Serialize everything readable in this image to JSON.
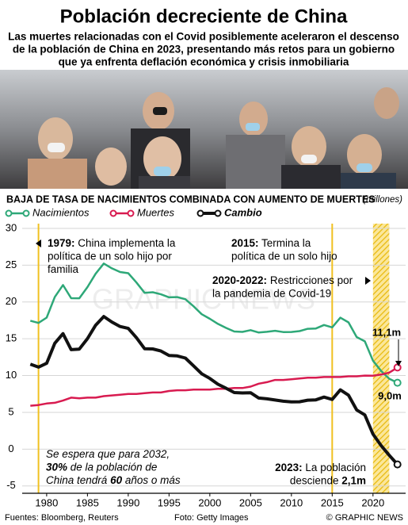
{
  "header": {
    "title": "Población decreciente de China",
    "subtitle": [
      "Las muertes relacionadas con el Covid posiblemente aceleraron el descenso",
      "de la población de China en 2023, presentando más retos para un gobierno",
      "que ya enfrenta deflación económica y crisis inmobiliaria"
    ]
  },
  "chart_data": {
    "type": "line",
    "title": "BAJA DE TASA DE NACIMIENTOS COMBINADA CON AUMENTO DE MUERTES",
    "unit_label": "(millones)",
    "x": [
      1978,
      1979,
      1980,
      1981,
      1982,
      1983,
      1984,
      1985,
      1986,
      1987,
      1988,
      1989,
      1990,
      1991,
      1992,
      1993,
      1994,
      1995,
      1996,
      1997,
      1998,
      1999,
      2000,
      2001,
      2002,
      2003,
      2004,
      2005,
      2006,
      2007,
      2008,
      2009,
      2010,
      2011,
      2012,
      2013,
      2014,
      2015,
      2016,
      2017,
      2018,
      2019,
      2020,
      2021,
      2022,
      2023
    ],
    "series": [
      {
        "name": "Nacimientos",
        "color": "#2ea878",
        "end_label": "9,0m",
        "values": [
          17.45,
          17.15,
          17.87,
          20.69,
          22.3,
          20.52,
          20.5,
          22.02,
          23.84,
          25.22,
          24.57,
          24.07,
          23.91,
          22.65,
          21.25,
          21.32,
          21.04,
          20.63,
          20.67,
          20.38,
          19.42,
          18.34,
          17.71,
          17.02,
          16.47,
          15.99,
          15.93,
          16.17,
          15.85,
          15.94,
          16.08,
          15.91,
          15.92,
          16.04,
          16.35,
          16.4,
          16.87,
          16.55,
          17.86,
          17.23,
          15.23,
          14.65,
          12.02,
          10.62,
          9.56,
          9.02
        ]
      },
      {
        "name": "Muertes",
        "color": "#d81b50",
        "end_label": "11,1m",
        "values": [
          5.9,
          6.0,
          6.2,
          6.3,
          6.6,
          7.0,
          6.9,
          7.0,
          7.0,
          7.2,
          7.3,
          7.4,
          7.5,
          7.5,
          7.6,
          7.7,
          7.7,
          7.9,
          8.0,
          8.0,
          8.1,
          8.1,
          8.1,
          8.2,
          8.2,
          8.3,
          8.3,
          8.5,
          8.9,
          9.1,
          9.4,
          9.4,
          9.5,
          9.6,
          9.7,
          9.7,
          9.8,
          9.8,
          9.8,
          9.9,
          9.9,
          10.0,
          9.98,
          10.14,
          10.41,
          11.1
        ]
      },
      {
        "name": "Cambio",
        "color": "#111111",
        "values": [
          11.55,
          11.15,
          11.67,
          14.39,
          15.7,
          13.52,
          13.6,
          15.02,
          16.84,
          18.02,
          17.27,
          16.67,
          16.41,
          15.15,
          13.65,
          13.62,
          13.34,
          12.73,
          12.67,
          12.38,
          11.32,
          10.24,
          9.61,
          8.82,
          8.27,
          7.69,
          7.63,
          7.67,
          6.95,
          6.84,
          6.68,
          6.51,
          6.42,
          6.44,
          6.65,
          6.7,
          7.07,
          6.75,
          8.06,
          7.33,
          5.33,
          4.65,
          2.04,
          0.48,
          -0.85,
          -2.08
        ]
      }
    ],
    "xlim": [
      1977,
      2024
    ],
    "xticks": [
      1980,
      1985,
      1990,
      1995,
      2000,
      2005,
      2010,
      2015,
      2020
    ],
    "ylim": [
      -6,
      30
    ],
    "yticks": [
      30,
      25,
      20,
      15,
      10,
      5,
      0,
      -5
    ],
    "grid": true,
    "highlight_years": [
      1979,
      2015
    ],
    "highlight_band": [
      2020,
      2022
    ],
    "annotations": [
      {
        "lines": [
          [
            "1979:",
            " China implementa la"
          ],
          [
            "política de un solo hijo por"
          ],
          [
            "familia"
          ]
        ],
        "bold": [
          [
            true,
            false
          ],
          [
            false
          ],
          [
            false
          ]
        ]
      },
      {
        "lines": [
          [
            "2015:",
            " Termina la"
          ],
          [
            "política de un solo hijo"
          ]
        ],
        "bold": [
          [
            true,
            false
          ],
          [
            false
          ]
        ]
      },
      {
        "lines": [
          [
            "2020-2022:",
            " Restricciones por"
          ],
          [
            "la pandemia de Covid-19"
          ]
        ],
        "bold": [
          [
            true,
            false
          ],
          [
            false
          ]
        ]
      },
      {
        "lines": [
          [
            "Se espera que para 2032,"
          ],
          [
            "30%",
            " de la población de"
          ],
          [
            "China tendrá ",
            "60",
            " años o más"
          ]
        ],
        "bold": [
          [
            false
          ],
          [
            true,
            false
          ],
          [
            false,
            true,
            false
          ]
        ]
      },
      {
        "lines": [
          [
            "2023:",
            " La población"
          ],
          [
            "desciende ",
            "2,1m"
          ]
        ],
        "bold": [
          [
            true,
            false
          ],
          [
            false,
            true
          ]
        ]
      }
    ]
  },
  "footer": {
    "sources": "Fuentes: Bloomberg, Reuters",
    "photo": "Foto: Getty Images",
    "credit": "© GRAPHIC NEWS",
    "watermark": "GRAPHIC NEWS"
  }
}
